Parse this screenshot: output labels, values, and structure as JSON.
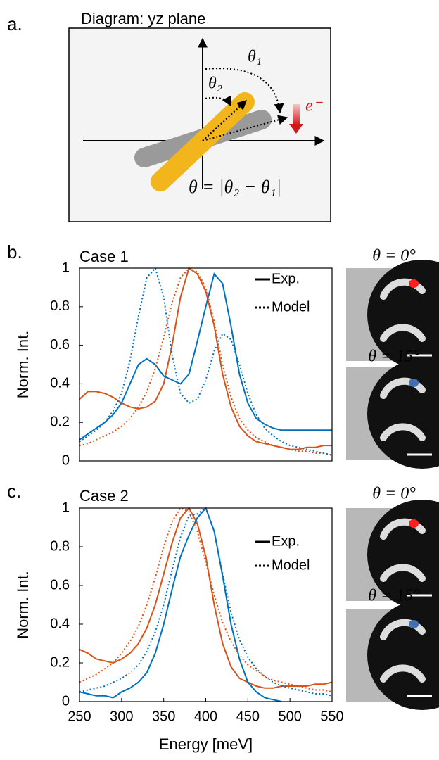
{
  "panel_a": {
    "label": "a.",
    "title": "Diagram: yz plane",
    "theta1": "θ₁",
    "theta2": "θ₂",
    "electron": "e⁻",
    "formula": "θ = |θ₂ − θ₁|"
  },
  "chart_data": [
    {
      "type": "line",
      "panel": "b.",
      "title": "Case 1",
      "ylabel": "Norm. Int.",
      "xlim": [
        250,
        550
      ],
      "ylim": [
        0,
        1
      ],
      "yticks": [
        0,
        0.2,
        0.4,
        0.6,
        0.8,
        1
      ],
      "legend": [
        {
          "label": "Exp.",
          "style": "solid"
        },
        {
          "label": "Model",
          "style": "dotted"
        }
      ],
      "x": [
        250,
        260,
        270,
        280,
        290,
        300,
        310,
        320,
        330,
        340,
        350,
        360,
        370,
        380,
        390,
        400,
        410,
        420,
        430,
        440,
        450,
        460,
        470,
        480,
        490,
        500,
        510,
        520,
        530,
        540,
        550
      ],
      "series": [
        {
          "style": "solid",
          "color": "#d95319",
          "values": [
            0.32,
            0.36,
            0.36,
            0.35,
            0.33,
            0.3,
            0.28,
            0.27,
            0.28,
            0.31,
            0.4,
            0.6,
            0.85,
            1.0,
            0.97,
            0.88,
            0.7,
            0.45,
            0.28,
            0.18,
            0.13,
            0.1,
            0.09,
            0.08,
            0.07,
            0.06,
            0.06,
            0.07,
            0.07,
            0.08,
            0.08
          ]
        },
        {
          "style": "solid",
          "color": "#0072bd",
          "values": [
            0.11,
            0.14,
            0.17,
            0.2,
            0.24,
            0.3,
            0.4,
            0.5,
            0.53,
            0.5,
            0.44,
            0.42,
            0.4,
            0.45,
            0.62,
            0.8,
            0.97,
            0.92,
            0.7,
            0.45,
            0.3,
            0.22,
            0.19,
            0.17,
            0.16,
            0.16,
            0.16,
            0.16,
            0.16,
            0.16,
            0.16
          ]
        },
        {
          "style": "dotted",
          "color": "#d95319",
          "values": [
            0.08,
            0.09,
            0.11,
            0.13,
            0.15,
            0.18,
            0.22,
            0.28,
            0.36,
            0.48,
            0.64,
            0.82,
            0.95,
            1.0,
            0.98,
            0.9,
            0.72,
            0.5,
            0.33,
            0.22,
            0.16,
            0.12,
            0.1,
            0.08,
            0.07,
            0.06,
            0.05,
            0.05,
            0.04,
            0.04,
            0.03
          ]
        },
        {
          "style": "dotted",
          "color": "#0072bd",
          "values": [
            0.1,
            0.13,
            0.16,
            0.2,
            0.26,
            0.35,
            0.52,
            0.75,
            0.95,
            1.0,
            0.85,
            0.55,
            0.35,
            0.3,
            0.32,
            0.42,
            0.57,
            0.66,
            0.63,
            0.5,
            0.35,
            0.24,
            0.17,
            0.13,
            0.1,
            0.08,
            0.07,
            0.06,
            0.05,
            0.04,
            0.03
          ]
        }
      ]
    },
    {
      "type": "line",
      "panel": "c.",
      "title": "Case 2",
      "ylabel": "Norm. Int.",
      "xlabel": "Energy [meV]",
      "xlim": [
        250,
        550
      ],
      "xticks": [
        250,
        300,
        350,
        400,
        450,
        500,
        550
      ],
      "ylim": [
        0,
        1
      ],
      "yticks": [
        0,
        0.2,
        0.4,
        0.6,
        0.8,
        1
      ],
      "legend": [
        {
          "label": "Exp.",
          "style": "solid"
        },
        {
          "label": "Model",
          "style": "dotted"
        }
      ],
      "x": [
        250,
        260,
        270,
        280,
        290,
        300,
        310,
        320,
        330,
        340,
        350,
        360,
        370,
        380,
        390,
        400,
        410,
        420,
        430,
        440,
        450,
        460,
        470,
        480,
        490,
        500,
        510,
        520,
        530,
        540,
        550
      ],
      "series": [
        {
          "style": "solid",
          "color": "#d95319",
          "values": [
            0.27,
            0.25,
            0.22,
            0.21,
            0.2,
            0.22,
            0.25,
            0.3,
            0.38,
            0.5,
            0.66,
            0.82,
            0.95,
            1.0,
            0.92,
            0.75,
            0.5,
            0.3,
            0.18,
            0.12,
            0.1,
            0.08,
            0.07,
            0.07,
            0.08,
            0.08,
            0.08,
            0.08,
            0.09,
            0.09,
            0.1
          ]
        },
        {
          "style": "solid",
          "color": "#0072bd",
          "values": [
            0.05,
            0.04,
            0.03,
            0.03,
            0.02,
            0.05,
            0.07,
            0.1,
            0.15,
            0.25,
            0.4,
            0.58,
            0.75,
            0.86,
            0.95,
            1.0,
            0.88,
            0.65,
            0.4,
            0.22,
            0.1,
            0.05,
            0.02,
            0.01,
            0.0,
            null,
            null,
            null,
            null,
            null,
            null
          ]
        },
        {
          "style": "dotted",
          "color": "#d95319",
          "values": [
            0.1,
            0.12,
            0.14,
            0.17,
            0.2,
            0.25,
            0.31,
            0.39,
            0.5,
            0.64,
            0.8,
            0.93,
            1.0,
            0.98,
            0.88,
            0.72,
            0.55,
            0.41,
            0.31,
            0.24,
            0.19,
            0.16,
            0.13,
            0.11,
            0.1,
            0.09,
            0.08,
            0.07,
            0.06,
            0.06,
            0.05
          ]
        },
        {
          "style": "dotted",
          "color": "#0072bd",
          "values": [
            0.05,
            0.06,
            0.07,
            0.08,
            0.1,
            0.12,
            0.15,
            0.19,
            0.26,
            0.36,
            0.5,
            0.68,
            0.85,
            0.96,
            0.97,
            1.0,
            0.88,
            0.66,
            0.46,
            0.32,
            0.23,
            0.17,
            0.13,
            0.1,
            0.08,
            0.07,
            0.06,
            0.05,
            0.04,
            0.04,
            0.03
          ]
        }
      ]
    }
  ],
  "images": {
    "b": [
      "θ = 0°",
      "θ = 15°"
    ],
    "c": [
      "θ = 0°",
      "θ = 15°"
    ]
  }
}
